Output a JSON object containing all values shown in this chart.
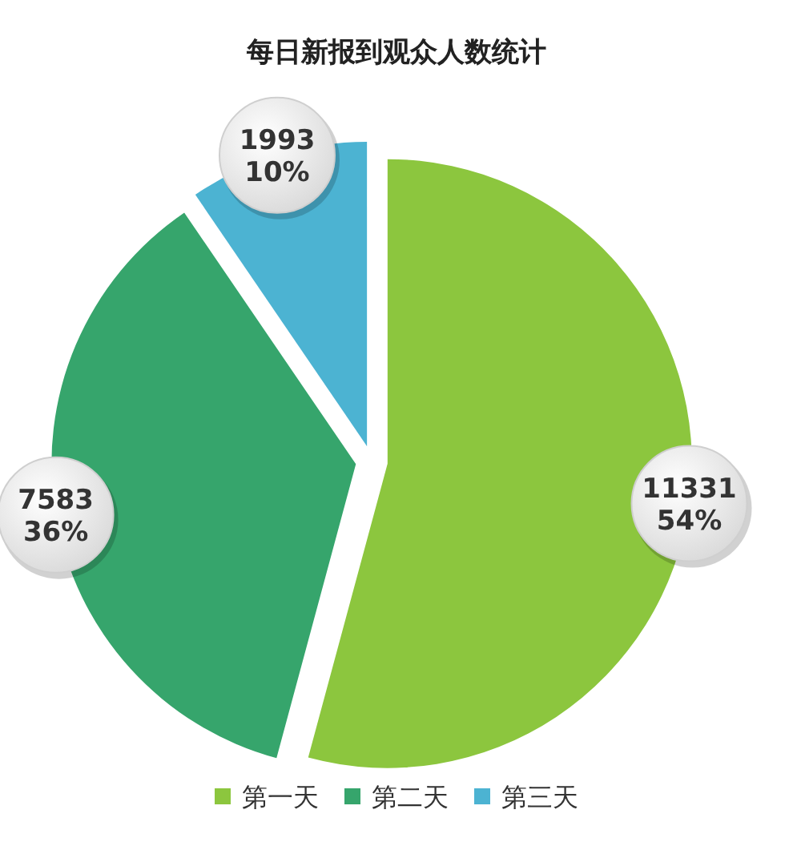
{
  "chart_data": {
    "type": "pie",
    "title": "每日新报到观众人数统计",
    "categories": [
      "第一天",
      "第二天",
      "第三天"
    ],
    "values": [
      11331,
      7583,
      1993
    ],
    "colors": [
      "#8cc63e",
      "#36a56c",
      "#4cb3d2"
    ],
    "value_labels": [
      "11331\n54%",
      "7583\n36%",
      "1993\n10%"
    ],
    "legend": "bottom"
  }
}
